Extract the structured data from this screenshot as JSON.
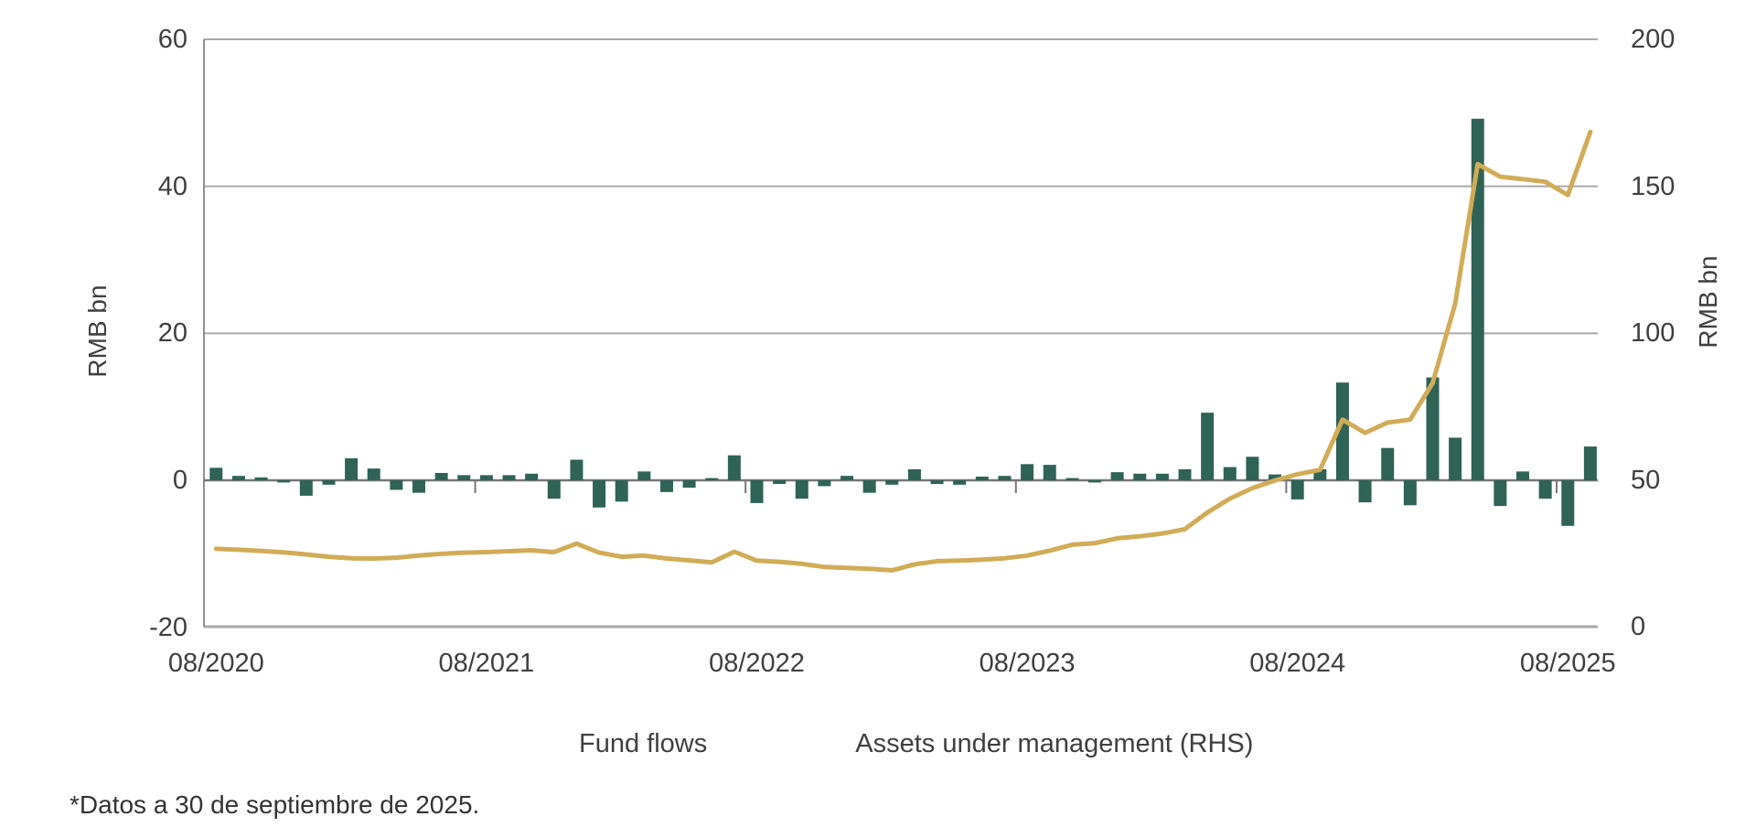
{
  "chart_data": {
    "type": "bar+line",
    "title": "",
    "x_start_month": "08/2020",
    "x_frequency": "monthly",
    "x_tick_labels": [
      "08/2020",
      "08/2021",
      "08/2022",
      "08/2023",
      "08/2024",
      "08/2025"
    ],
    "left_axis": {
      "label": "RMB bn",
      "min": -20,
      "max": 60,
      "ticks": [
        60,
        40,
        20,
        0,
        -20
      ]
    },
    "right_axis": {
      "label": "RMB bn",
      "min": 0,
      "max": 200,
      "ticks": [
        200,
        150,
        100,
        50,
        0
      ]
    },
    "grid": true,
    "legend_position": "bottom",
    "series": [
      {
        "name": "Fund flows",
        "type": "bar",
        "axis": "left",
        "color": "#2e6356",
        "values": [
          1.7,
          0.6,
          0.4,
          -0.3,
          -2.1,
          -0.6,
          3.0,
          1.6,
          -1.3,
          -1.7,
          1.0,
          0.7,
          0.7,
          0.7,
          0.9,
          -2.5,
          2.8,
          -3.7,
          -2.9,
          1.2,
          -1.6,
          -1.0,
          0.3,
          3.4,
          -3.1,
          -0.5,
          -2.5,
          -0.8,
          0.6,
          -1.7,
          -0.6,
          1.5,
          -0.5,
          -0.6,
          0.5,
          0.6,
          2.2,
          2.1,
          0.3,
          -0.3,
          1.1,
          0.9,
          0.9,
          1.5,
          9.2,
          1.8,
          3.2,
          0.8,
          -2.6,
          1.5,
          13.3,
          -3.0,
          4.4,
          -3.4,
          14.0,
          5.8,
          49.2,
          -3.5,
          1.2,
          -2.5,
          -6.2,
          4.6
        ]
      },
      {
        "name": "Assets under management (RHS)",
        "type": "line",
        "axis": "right",
        "color": "#d1ab55",
        "values": [
          26.5,
          26.2,
          25.8,
          25.3,
          24.6,
          23.8,
          23.3,
          23.2,
          23.5,
          24.2,
          24.8,
          25.2,
          25.4,
          25.7,
          26.0,
          25.4,
          28.3,
          25.2,
          23.8,
          24.2,
          23.2,
          22.6,
          21.9,
          25.5,
          22.5,
          22.1,
          21.4,
          20.3,
          20.0,
          19.7,
          19.2,
          21.2,
          22.3,
          22.5,
          22.8,
          23.3,
          24.2,
          25.9,
          27.9,
          28.4,
          30.1,
          30.8,
          31.7,
          33.2,
          38.9,
          43.6,
          47.2,
          49.8,
          51.9,
          53.4,
          70.5,
          66.0,
          69.5,
          70.5,
          83.0,
          110.0,
          157.5,
          153.2,
          152.4,
          151.5,
          147.0,
          168.5
        ]
      }
    ]
  },
  "axis_titles": {
    "left": "RMB bn",
    "right": "RMB bn"
  },
  "legend": {
    "fund_flows": "Fund flows",
    "aum": "Assets under management (RHS)"
  },
  "footnote": "*Datos a 30 de septiembre de 2025.",
  "colors": {
    "bar": "#2e6356",
    "line": "#d1ab55",
    "grid": "#a9a9a9",
    "zero_line": "#757575",
    "left_axis_line": "#8f8f8f",
    "text": "#3f3f3f"
  }
}
